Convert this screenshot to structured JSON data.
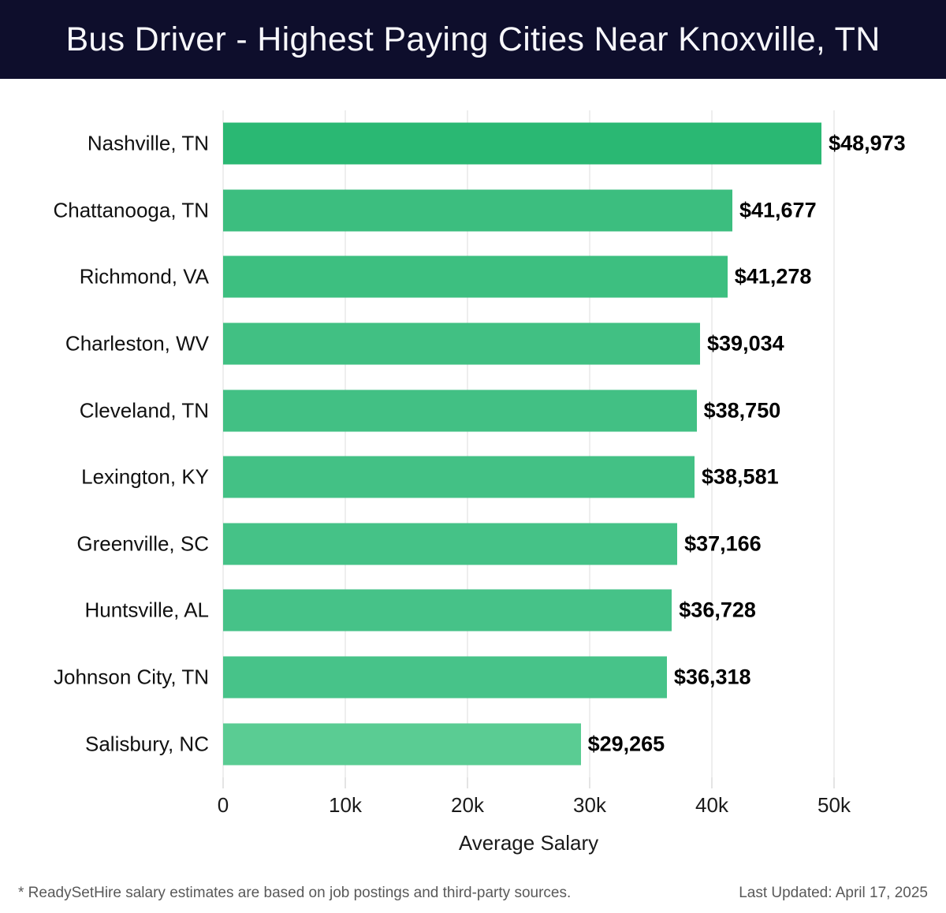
{
  "header": {
    "title": "Bus Driver - Highest Paying Cities Near Knoxville, TN",
    "bg_color": "#0e0e2c",
    "text_color": "#f7f7fb"
  },
  "chart_data": {
    "type": "bar",
    "orientation": "horizontal",
    "title": "Bus Driver - Highest Paying Cities Near Knoxville, TN",
    "xlabel": "Average Salary",
    "ylabel": "",
    "xlim": [
      0,
      50000
    ],
    "grid": "vertical",
    "x_ticks": [
      {
        "value": 0,
        "label": "0"
      },
      {
        "value": 10000,
        "label": "10k"
      },
      {
        "value": 20000,
        "label": "20k"
      },
      {
        "value": 30000,
        "label": "30k"
      },
      {
        "value": 40000,
        "label": "40k"
      },
      {
        "value": 50000,
        "label": "50k"
      }
    ],
    "categories": [
      "Nashville, TN",
      "Chattanooga, TN",
      "Richmond, VA",
      "Charleston, WV",
      "Cleveland, TN",
      "Lexington, KY",
      "Greenville, SC",
      "Huntsville, AL",
      "Johnson City, TN",
      "Salisbury, NC"
    ],
    "values": [
      48973,
      41677,
      41278,
      39034,
      38750,
      38581,
      37166,
      36728,
      36318,
      29265
    ],
    "value_labels": [
      "$48,973",
      "$41,677",
      "$41,278",
      "$39,034",
      "$38,750",
      "$38,581",
      "$37,166",
      "$36,728",
      "$36,318",
      "$29,265"
    ],
    "bar_colors": [
      "#2ab873",
      "#3cbe7f",
      "#3dbf80",
      "#41c083",
      "#42c084",
      "#43c185",
      "#45c287",
      "#46c288",
      "#47c389",
      "#5acc93"
    ]
  },
  "footer": {
    "note": "* ReadySetHire salary estimates are based on job postings and third-party sources.",
    "last_updated": "Last Updated: April 17, 2025"
  }
}
